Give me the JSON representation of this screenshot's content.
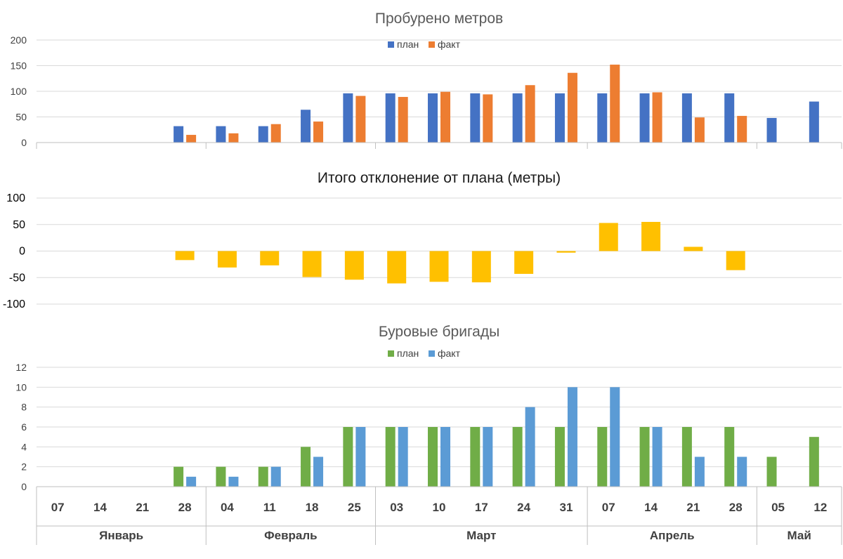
{
  "chart_data": [
    {
      "type": "bar",
      "title": "Пробурено метров",
      "categories": [
        "07",
        "14",
        "21",
        "28",
        "04",
        "11",
        "18",
        "25",
        "03",
        "10",
        "17",
        "24",
        "31",
        "07",
        "14",
        "21",
        "28",
        "05",
        "12"
      ],
      "ylim": [
        0,
        200
      ],
      "yticks": [
        "200",
        "150",
        "100",
        "50",
        "0"
      ],
      "legend_position": "top-center",
      "series": [
        {
          "name": "план",
          "color": "#4472c4",
          "values": [
            0,
            0,
            0,
            32,
            32,
            32,
            64,
            96,
            96,
            96,
            96,
            96,
            96,
            96,
            96,
            96,
            96,
            48,
            80
          ]
        },
        {
          "name": "факт",
          "color": "#ed7d31",
          "values": [
            0,
            0,
            0,
            15,
            18,
            36,
            41,
            91,
            89,
            99,
            94,
            112,
            136,
            152,
            98,
            49,
            52,
            0,
            0
          ]
        }
      ]
    },
    {
      "type": "bar",
      "title": "Итого отклонение от плана (метры)",
      "categories": [
        "07",
        "14",
        "21",
        "28",
        "04",
        "11",
        "18",
        "25",
        "03",
        "10",
        "17",
        "24",
        "31",
        "07",
        "14",
        "21",
        "28",
        "05",
        "12"
      ],
      "ylim": [
        -100,
        100
      ],
      "yticks": [
        "100",
        "50",
        "0",
        "-50",
        "-100"
      ],
      "series": [
        {
          "name": "отклонение",
          "color": "#ffc000",
          "values": [
            0,
            0,
            0,
            -17,
            -31,
            -27,
            -49,
            -54,
            -61,
            -58,
            -59,
            -43,
            -3,
            53,
            55,
            8,
            -36,
            0,
            0
          ]
        }
      ]
    },
    {
      "type": "bar",
      "title": "Буровые бригады",
      "categories": [
        "07",
        "14",
        "21",
        "28",
        "04",
        "11",
        "18",
        "25",
        "03",
        "10",
        "17",
        "24",
        "31",
        "07",
        "14",
        "21",
        "28",
        "05",
        "12"
      ],
      "ylim": [
        0,
        12
      ],
      "yticks": [
        "12",
        "10",
        "8",
        "6",
        "4",
        "2",
        "0"
      ],
      "legend_position": "top-center",
      "series": [
        {
          "name": "план",
          "color": "#70ad47",
          "values": [
            0,
            0,
            0,
            2,
            2,
            2,
            4,
            6,
            6,
            6,
            6,
            6,
            6,
            6,
            6,
            6,
            6,
            3,
            5
          ]
        },
        {
          "name": "факт",
          "color": "#5b9bd5",
          "values": [
            0,
            0,
            0,
            1,
            1,
            2,
            3,
            6,
            6,
            6,
            6,
            8,
            10,
            10,
            6,
            3,
            3,
            0,
            0
          ]
        }
      ]
    }
  ],
  "x_axis": {
    "days": [
      "07",
      "14",
      "21",
      "28",
      "04",
      "11",
      "18",
      "25",
      "03",
      "10",
      "17",
      "24",
      "31",
      "07",
      "14",
      "21",
      "28",
      "05",
      "12"
    ],
    "months": [
      {
        "label": "Январь",
        "start": 0,
        "count": 4
      },
      {
        "label": "Февраль",
        "start": 4,
        "count": 4
      },
      {
        "label": "Март",
        "start": 8,
        "count": 5
      },
      {
        "label": "Апрель",
        "start": 13,
        "count": 4
      },
      {
        "label": "Май",
        "start": 17,
        "count": 2
      }
    ]
  }
}
